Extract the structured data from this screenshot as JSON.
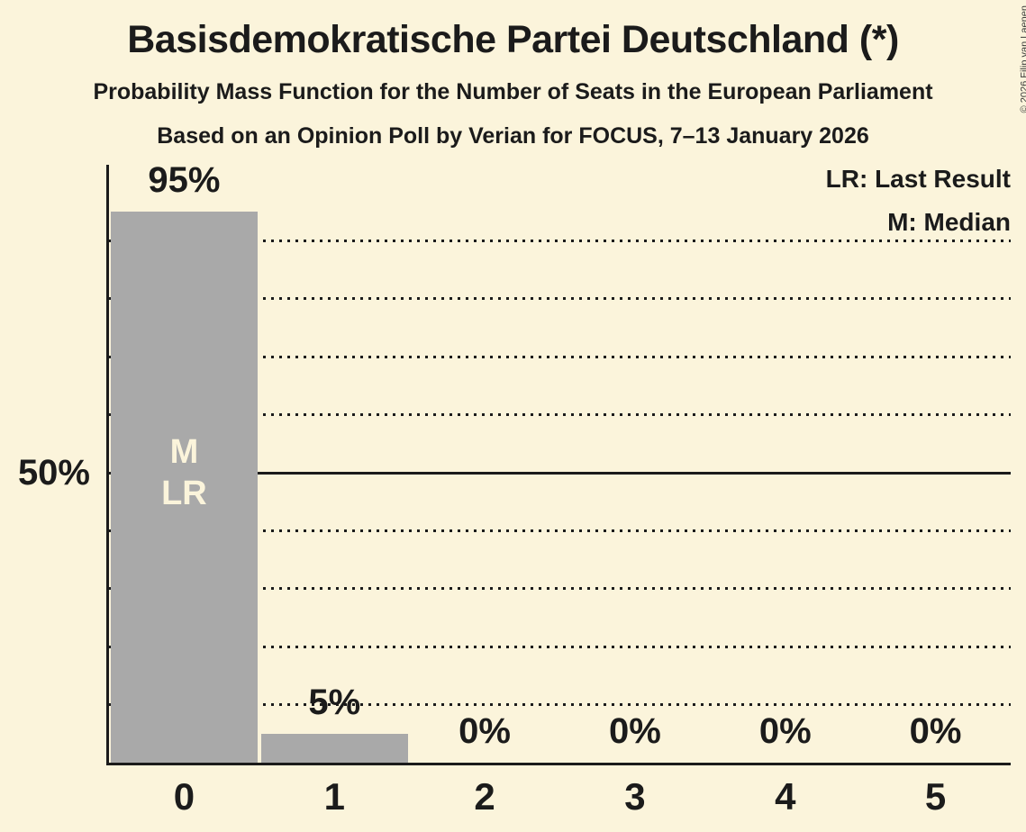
{
  "chart_data": {
    "type": "bar",
    "title": "Basisdemokratische Partei Deutschland (*)",
    "subtitle": "Probability Mass Function for the Number of Seats in the European Parliament",
    "source": "Based on an Opinion Poll by Verian for FOCUS, 7–13 January 2026",
    "copyright": "© 2026 Filip van Laenen",
    "legend": [
      {
        "label": "LR: Last Result"
      },
      {
        "label": "M: Median"
      }
    ],
    "xlabel": "",
    "ylabel": "",
    "categories": [
      "0",
      "1",
      "2",
      "3",
      "4",
      "5"
    ],
    "values": [
      95,
      5,
      0,
      0,
      0,
      0
    ],
    "value_labels": [
      "95%",
      "5%",
      "0%",
      "0%",
      "0%",
      "0%"
    ],
    "bar_annotations": [
      [
        "M",
        "LR"
      ],
      [],
      [],
      [],
      [],
      []
    ],
    "y_axis": {
      "tick_label": "50%",
      "tick_pct": 50,
      "ylim": [
        0,
        100
      ],
      "gridlines_pct": [
        10,
        20,
        30,
        40,
        50,
        60,
        70,
        80,
        90
      ],
      "solid_gridline_pct": 50,
      "grid_style": "dotted-horizontal"
    },
    "legend_position": "top-right",
    "colors": {
      "background": "#FBF4DB",
      "bar": "#A9A9A9",
      "text": "#1B1B1B",
      "bar_label": "#FBF4DB"
    }
  }
}
